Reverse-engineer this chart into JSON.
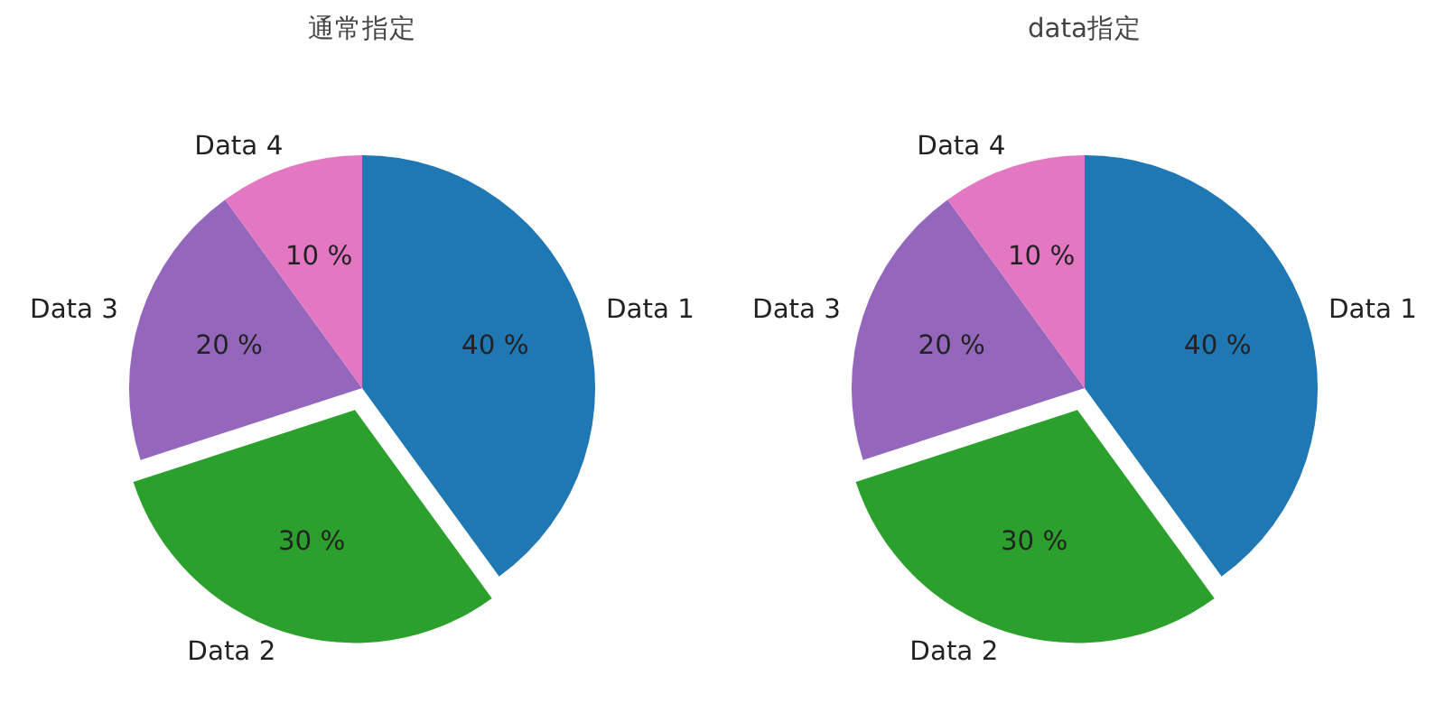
{
  "chart_data": [
    {
      "type": "pie",
      "title": "通常指定",
      "categories": [
        "Data 1",
        "Data 2",
        "Data 3",
        "Data 4"
      ],
      "values": [
        40,
        30,
        20,
        10
      ],
      "colors": [
        "#1f77b4",
        "#2ca02c",
        "#9467bd",
        "#e377c2"
      ],
      "value_labels": [
        "40 %",
        "30 %",
        "20 %",
        "10 %"
      ]
    },
    {
      "type": "pie",
      "title": "data指定",
      "categories": [
        "Data 1",
        "Data 2",
        "Data 3",
        "Data 4"
      ],
      "values": [
        40,
        30,
        20,
        10
      ],
      "colors": [
        "#1f77b4",
        "#2ca02c",
        "#9467bd",
        "#e377c2"
      ],
      "value_labels": [
        "40 %",
        "30 %",
        "20 %",
        "10 %"
      ]
    }
  ]
}
